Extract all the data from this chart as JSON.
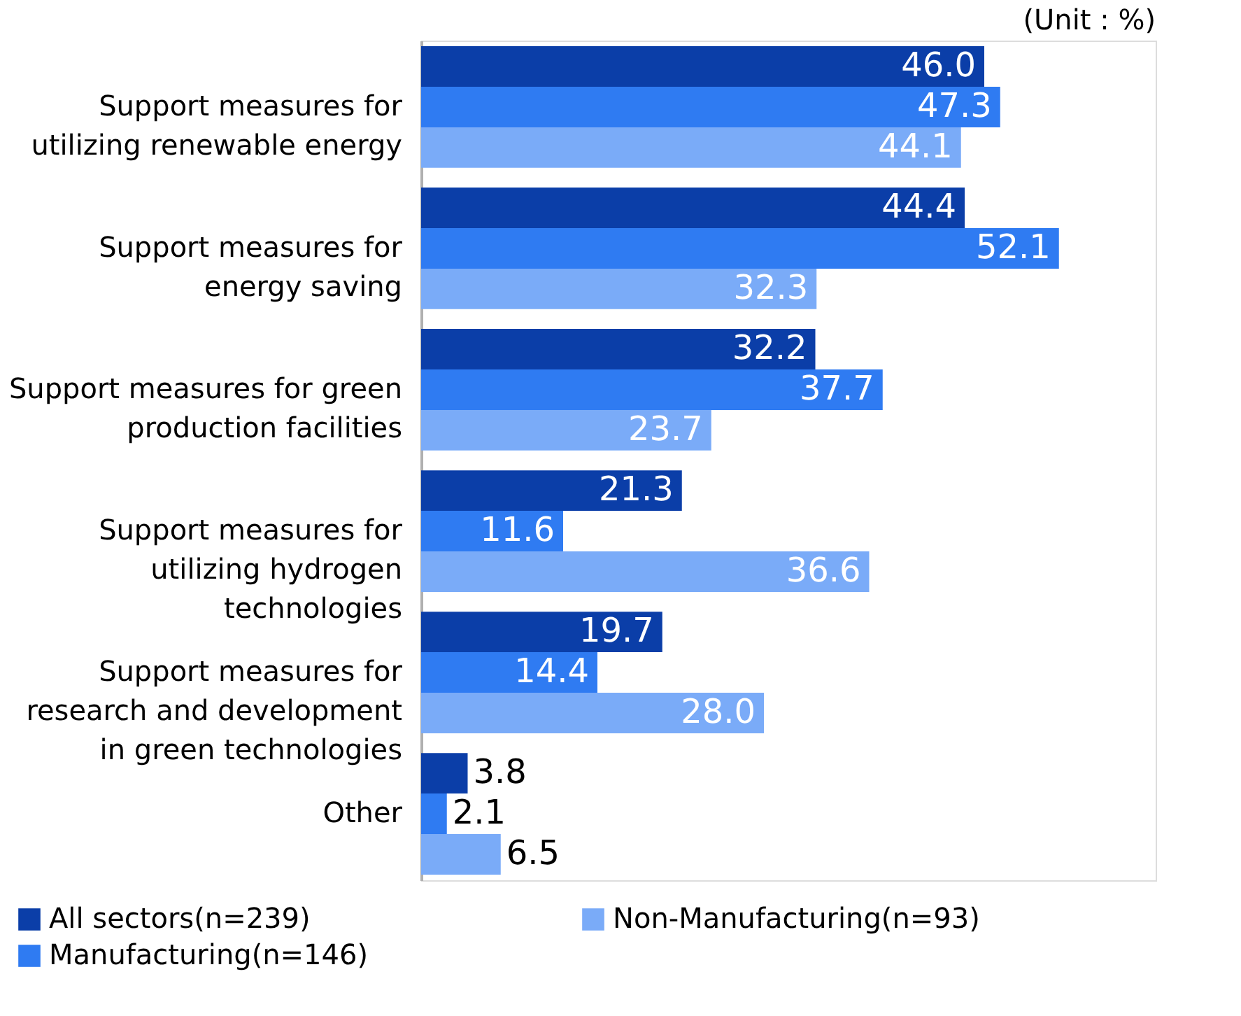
{
  "chart_data": {
    "type": "bar",
    "orientation": "horizontal",
    "categories": [
      "Support measures for\nutilizing renewable energy",
      "Support measures for\nenergy saving",
      "Support measures for green\nproduction facilities",
      "Support measures for\nutilizing hydrogen\ntechnologies",
      "Support measures for\nresearch and development\nin green technologies",
      "Other"
    ],
    "series": [
      {
        "name": "All sectors(n=239)",
        "color": "#0b3ea8",
        "values": [
          46.0,
          44.4,
          32.2,
          21.3,
          19.7,
          3.8
        ],
        "value_labels": [
          "46.0",
          "44.4",
          "32.2",
          "21.3",
          "19.7",
          "3.8"
        ]
      },
      {
        "name": "Manufacturing(n=146)",
        "color": "#2f7bf2",
        "values": [
          47.3,
          52.1,
          37.7,
          11.6,
          14.4,
          2.1
        ],
        "value_labels": [
          "47.3",
          "52.1",
          "37.7",
          "11.6",
          "14.4",
          "2.1"
        ]
      },
      {
        "name": "Non-Manufacturing(n=93)",
        "color": "#7aabf8",
        "values": [
          44.1,
          32.3,
          23.7,
          36.6,
          28.0,
          6.5
        ],
        "value_labels": [
          "44.1",
          "32.3",
          "23.7",
          "36.6",
          "28.0",
          "6.5"
        ]
      }
    ],
    "xlim": [
      0,
      60
    ],
    "legend": "bottom",
    "tick_labels": "y",
    "annotations": [
      "(Unit : %)"
    ]
  }
}
